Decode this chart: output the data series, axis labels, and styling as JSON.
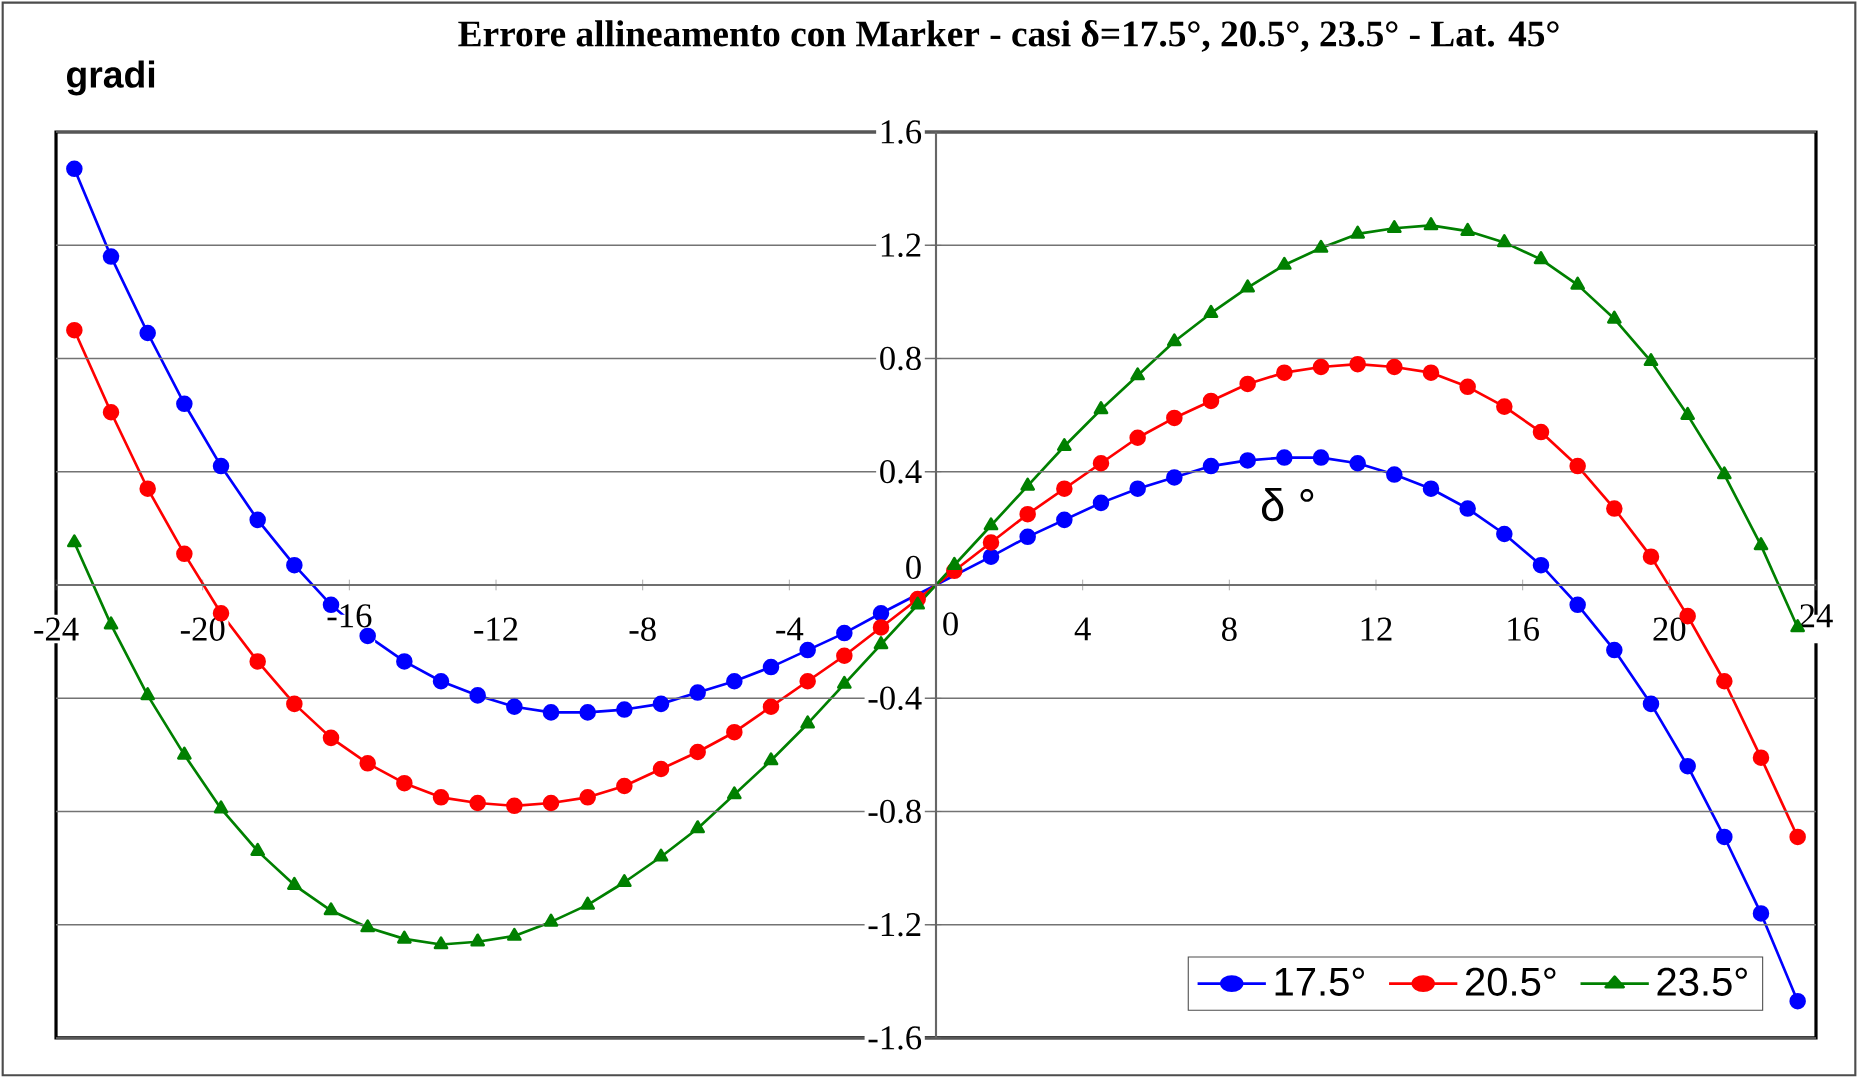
{
  "chart_data": {
    "type": "line",
    "title": "Errore allineamento con Marker - casi δ=17.5°, 20.5°, 23.5°  -  Lat. 45°",
    "xlabel": "δ °",
    "ylabel": "gradi",
    "x": [
      -23.5,
      -22.5,
      -21.5,
      -20.5,
      -19.5,
      -18.5,
      -17.5,
      -16.5,
      -15.5,
      -14.5,
      -13.5,
      -12.5,
      -11.5,
      -10.5,
      -9.5,
      -8.5,
      -7.5,
      -6.5,
      -5.5,
      -4.5,
      -3.5,
      -2.5,
      -1.5,
      -0.5,
      0.5,
      1.5,
      2.5,
      3.5,
      4.5,
      5.5,
      6.5,
      7.5,
      8.5,
      9.5,
      10.5,
      11.5,
      12.5,
      13.5,
      14.5,
      15.5,
      16.5,
      17.5,
      18.5,
      19.5,
      20.5,
      21.5,
      22.5,
      23.5
    ],
    "series": [
      {
        "name": "17.5°",
        "color": "#0000ff",
        "marker": "circle",
        "values": [
          1.47,
          1.16,
          0.89,
          0.64,
          0.42,
          0.23,
          0.07,
          -0.07,
          -0.18,
          -0.27,
          -0.34,
          -0.39,
          -0.43,
          -0.45,
          -0.45,
          -0.44,
          -0.42,
          -0.38,
          -0.34,
          -0.29,
          -0.23,
          -0.17,
          -0.1,
          null,
          null,
          0.1,
          0.17,
          0.23,
          0.29,
          0.34,
          0.38,
          0.42,
          0.44,
          0.45,
          0.45,
          0.43,
          0.39,
          0.34,
          0.27,
          0.18,
          0.07,
          -0.07,
          -0.23,
          -0.42,
          -0.64,
          -0.89,
          -1.16,
          -1.47
        ]
      },
      {
        "name": "20.5°",
        "color": "#ff0000",
        "marker": "circle",
        "values": [
          0.9,
          0.61,
          0.34,
          0.11,
          -0.1,
          -0.27,
          -0.42,
          -0.54,
          -0.63,
          -0.7,
          -0.75,
          -0.77,
          -0.78,
          -0.77,
          -0.75,
          -0.71,
          -0.65,
          -0.59,
          -0.52,
          -0.43,
          -0.34,
          -0.25,
          -0.15,
          -0.05,
          0.05,
          0.15,
          0.25,
          0.34,
          0.43,
          0.52,
          0.59,
          0.65,
          0.71,
          0.75,
          0.77,
          0.78,
          0.77,
          0.75,
          0.7,
          0.63,
          0.54,
          0.42,
          0.27,
          0.1,
          -0.11,
          -0.34,
          -0.61,
          -0.89
        ]
      },
      {
        "name": "23.5°",
        "color": "#008000",
        "marker": "triangle",
        "values": [
          0.15,
          -0.14,
          -0.39,
          -0.6,
          -0.79,
          -0.94,
          -1.06,
          -1.15,
          -1.21,
          -1.25,
          -1.27,
          -1.26,
          -1.24,
          -1.19,
          -1.13,
          -1.05,
          -0.96,
          -0.86,
          -0.74,
          -0.62,
          -0.49,
          -0.35,
          -0.21,
          -0.07,
          0.07,
          0.21,
          0.35,
          0.49,
          0.62,
          0.74,
          0.86,
          0.96,
          1.05,
          1.13,
          1.19,
          1.24,
          1.26,
          1.27,
          1.25,
          1.21,
          1.15,
          1.06,
          0.94,
          0.79,
          0.6,
          0.39,
          0.14,
          -0.15
        ]
      }
    ],
    "xlim": [
      -24,
      24
    ],
    "ylim": [
      -1.6,
      1.6
    ],
    "xticks": [
      -24,
      -20,
      -16,
      -12,
      -8,
      -4,
      0,
      4,
      8,
      12,
      16,
      20,
      24
    ],
    "yticks": [
      -1.6,
      -1.2,
      -0.8,
      -0.4,
      0,
      0.4,
      0.8,
      1.2,
      1.6
    ],
    "grid": "y",
    "legend": "bottom right"
  }
}
